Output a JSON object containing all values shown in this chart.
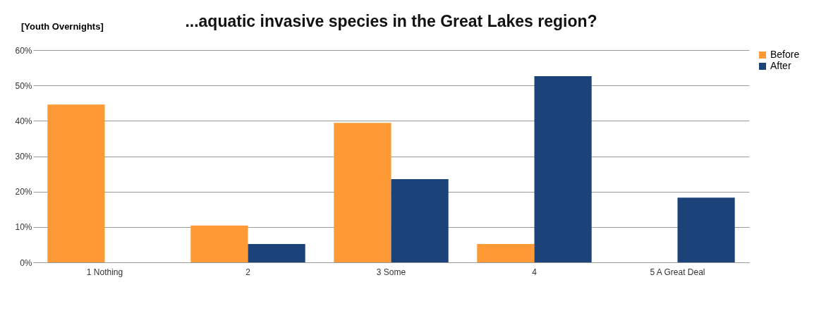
{
  "chart_data": {
    "type": "bar",
    "title": "...aquatic invasive species in the Great Lakes region?",
    "annotations": [
      "[Youth Overnights]"
    ],
    "categories": [
      "1 Nothing",
      "2",
      "3 Some",
      "4",
      "5 A Great Deal"
    ],
    "series": [
      {
        "name": "Before",
        "color": "#fd9a35",
        "values": [
          44.6,
          10.4,
          39.4,
          5.2,
          0
        ]
      },
      {
        "name": "After",
        "color": "#1b4279",
        "values": [
          0,
          5.2,
          23.5,
          52.6,
          18.3
        ]
      }
    ],
    "ylim": [
      0,
      60
    ],
    "yticks": [
      {
        "value": 0,
        "label": "0%"
      },
      {
        "value": 10,
        "label": "10%"
      },
      {
        "value": 20,
        "label": "20%"
      },
      {
        "value": 30,
        "label": "30%"
      },
      {
        "value": 40,
        "label": "40%"
      },
      {
        "value": 50,
        "label": "50%"
      },
      {
        "value": 60,
        "label": "60%"
      }
    ],
    "grid": "y",
    "legend": "right"
  }
}
